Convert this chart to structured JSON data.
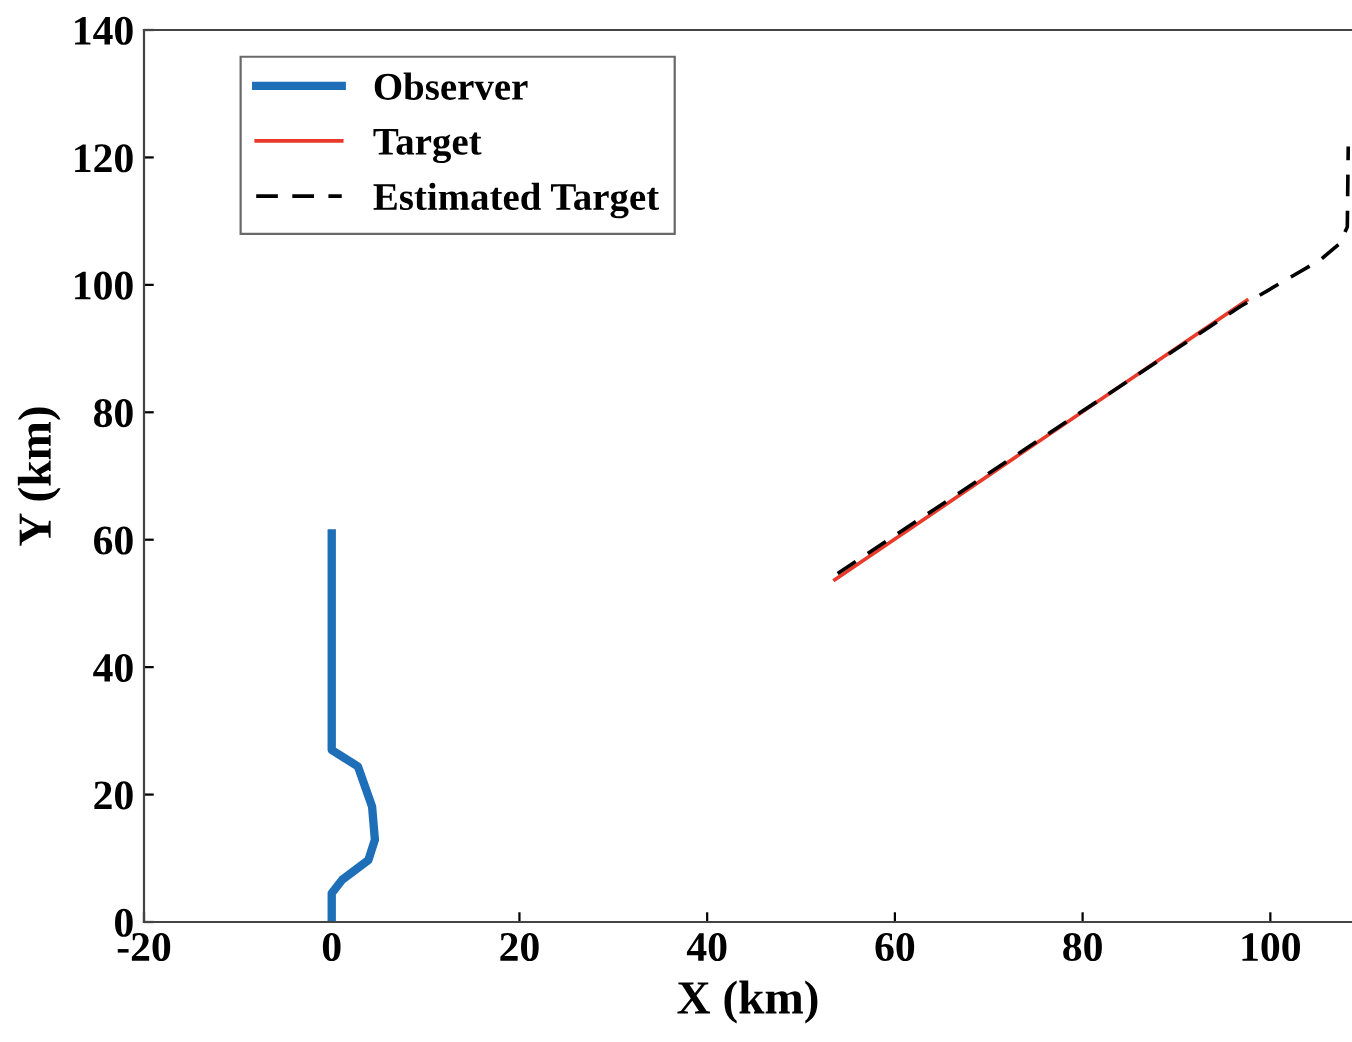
{
  "chart_data": {
    "type": "line",
    "xlabel": "X (km)",
    "ylabel": "Y (km)",
    "xlim": [
      -20,
      108.7
    ],
    "ylim": [
      0,
      140
    ],
    "xticks": [
      -20,
      0,
      20,
      40,
      60,
      80,
      100
    ],
    "yticks": [
      0,
      20,
      40,
      60,
      80,
      100,
      120,
      140
    ],
    "grid": false,
    "legend": "top left",
    "series": [
      {
        "name": "Observer",
        "color": "#1f6fb8",
        "line_style": "solid",
        "x": [
          0,
          0,
          1.1,
          3.9,
          4.6,
          4.3,
          2.8,
          0,
          0
        ],
        "values": [
          0,
          4.5,
          6.6,
          9.7,
          12.9,
          18.1,
          24.4,
          27,
          61
        ]
      },
      {
        "name": "Target",
        "color": "#e8392a",
        "line_style": "solid",
        "x": [
          53.6,
          97.5
        ],
        "values": [
          53.7,
          97.6
        ]
      },
      {
        "name": "Estimated Target",
        "color": "#000000",
        "line_style": "dashed",
        "x": [
          53.9,
          96.8,
          105.3,
          107.4,
          108.2,
          108.3
        ],
        "values": [
          54.7,
          96.6,
          103.9,
          106.5,
          109.1,
          121.7
        ]
      }
    ]
  }
}
